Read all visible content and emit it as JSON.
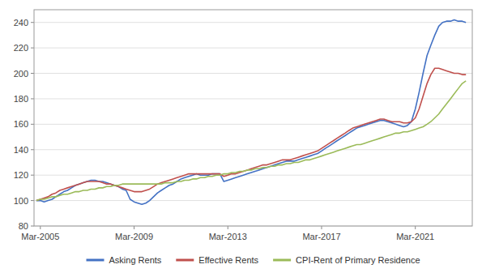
{
  "chart_data": {
    "type": "line",
    "x": [
      2005.0,
      2005.17,
      2005.33,
      2005.5,
      2005.67,
      2005.83,
      2006.0,
      2006.17,
      2006.33,
      2006.5,
      2006.67,
      2006.83,
      2007.0,
      2007.17,
      2007.33,
      2007.5,
      2007.67,
      2007.83,
      2008.0,
      2008.17,
      2008.33,
      2008.5,
      2008.67,
      2008.83,
      2009.0,
      2009.17,
      2009.33,
      2009.5,
      2009.67,
      2009.83,
      2010.0,
      2010.17,
      2010.33,
      2010.5,
      2010.67,
      2010.83,
      2011.0,
      2011.17,
      2011.33,
      2011.5,
      2011.67,
      2011.83,
      2012.0,
      2012.17,
      2012.33,
      2012.5,
      2012.67,
      2012.83,
      2013.0,
      2013.17,
      2013.33,
      2013.5,
      2013.67,
      2013.83,
      2014.0,
      2014.17,
      2014.33,
      2014.5,
      2014.67,
      2014.83,
      2015.0,
      2015.17,
      2015.33,
      2015.5,
      2015.67,
      2015.83,
      2016.0,
      2016.17,
      2016.33,
      2016.5,
      2016.67,
      2016.83,
      2017.0,
      2017.17,
      2017.33,
      2017.5,
      2017.67,
      2017.83,
      2018.0,
      2018.17,
      2018.33,
      2018.5,
      2018.67,
      2018.83,
      2019.0,
      2019.17,
      2019.33,
      2019.5,
      2019.67,
      2019.83,
      2020.0,
      2020.17,
      2020.33,
      2020.5,
      2020.67,
      2020.83,
      2021.0,
      2021.17,
      2021.33,
      2021.5,
      2021.67,
      2021.83,
      2022.0,
      2022.17,
      2022.33,
      2022.5,
      2022.67,
      2022.83,
      2023.0,
      2023.17,
      2023.33
    ],
    "series": [
      {
        "name": "Asking Rents",
        "color": "#4472C4",
        "values": [
          100,
          100,
          99,
          100,
          101,
          103,
          105,
          107,
          108,
          110,
          112,
          113,
          114,
          115,
          116,
          116,
          115,
          115,
          114,
          113,
          112,
          111,
          109,
          108,
          101,
          99,
          98,
          97,
          98,
          100,
          103,
          106,
          108,
          110,
          112,
          113,
          115,
          117,
          118,
          119,
          120,
          121,
          120,
          120,
          120,
          121,
          121,
          121,
          115,
          116,
          117,
          118,
          119,
          120,
          121,
          122,
          123,
          124,
          125,
          126,
          127,
          128,
          129,
          130,
          131,
          131,
          131,
          132,
          133,
          134,
          135,
          136,
          137,
          139,
          141,
          143,
          145,
          147,
          149,
          151,
          153,
          155,
          157,
          158,
          159,
          160,
          161,
          162,
          163,
          163,
          162,
          161,
          160,
          159,
          158,
          159,
          162,
          172,
          185,
          200,
          214,
          222,
          230,
          237,
          240,
          241,
          241,
          242,
          241,
          241,
          240
        ]
      },
      {
        "name": "Effective Rents",
        "color": "#C0504D",
        "values": [
          100,
          101,
          102,
          103,
          105,
          106,
          108,
          109,
          110,
          111,
          112,
          113,
          114,
          115,
          115,
          115,
          115,
          114,
          113,
          113,
          112,
          111,
          110,
          109,
          108,
          107,
          107,
          107,
          108,
          109,
          111,
          113,
          114,
          115,
          116,
          117,
          118,
          119,
          120,
          121,
          121,
          121,
          121,
          121,
          121,
          121,
          121,
          121,
          119,
          120,
          121,
          121,
          122,
          123,
          124,
          125,
          126,
          127,
          128,
          128,
          129,
          130,
          131,
          132,
          132,
          132,
          133,
          134,
          135,
          136,
          137,
          138,
          139,
          141,
          143,
          145,
          147,
          149,
          151,
          153,
          155,
          157,
          158,
          159,
          160,
          161,
          162,
          163,
          164,
          164,
          163,
          162,
          162,
          162,
          161,
          161,
          162,
          165,
          172,
          182,
          192,
          199,
          204,
          204,
          203,
          202,
          201,
          200,
          200,
          199,
          199
        ]
      },
      {
        "name": "CPI-Rent of Primary Residence",
        "color": "#9BBB59",
        "values": [
          100,
          101,
          101,
          102,
          103,
          103,
          104,
          105,
          105,
          106,
          107,
          107,
          108,
          108,
          109,
          109,
          110,
          110,
          111,
          111,
          112,
          112,
          113,
          113,
          113,
          113,
          113,
          113,
          113,
          113,
          113,
          113,
          113,
          114,
          114,
          114,
          115,
          115,
          116,
          116,
          117,
          117,
          118,
          118,
          119,
          119,
          120,
          120,
          121,
          121,
          122,
          122,
          123,
          123,
          124,
          124,
          125,
          125,
          126,
          126,
          127,
          127,
          128,
          128,
          129,
          129,
          130,
          130,
          131,
          132,
          132,
          133,
          134,
          135,
          136,
          137,
          138,
          139,
          140,
          141,
          142,
          143,
          144,
          144,
          145,
          146,
          147,
          148,
          149,
          150,
          151,
          152,
          153,
          153,
          154,
          154,
          155,
          156,
          157,
          158,
          160,
          162,
          165,
          168,
          172,
          176,
          180,
          184,
          188,
          192,
          194
        ]
      }
    ],
    "xlim": [
      2004.9,
      2023.6
    ],
    "xticks": [
      {
        "value": 2005.17,
        "label": "Mar-2005"
      },
      {
        "value": 2009.17,
        "label": "Mar-2009"
      },
      {
        "value": 2013.17,
        "label": "Mar-2013"
      },
      {
        "value": 2017.17,
        "label": "Mar-2017"
      },
      {
        "value": 2021.17,
        "label": "Mar-2021"
      }
    ],
    "ylim": [
      80,
      250
    ],
    "yticks": [
      80,
      100,
      120,
      140,
      160,
      180,
      200,
      220,
      240
    ],
    "grid": true,
    "legend": "bottom"
  }
}
